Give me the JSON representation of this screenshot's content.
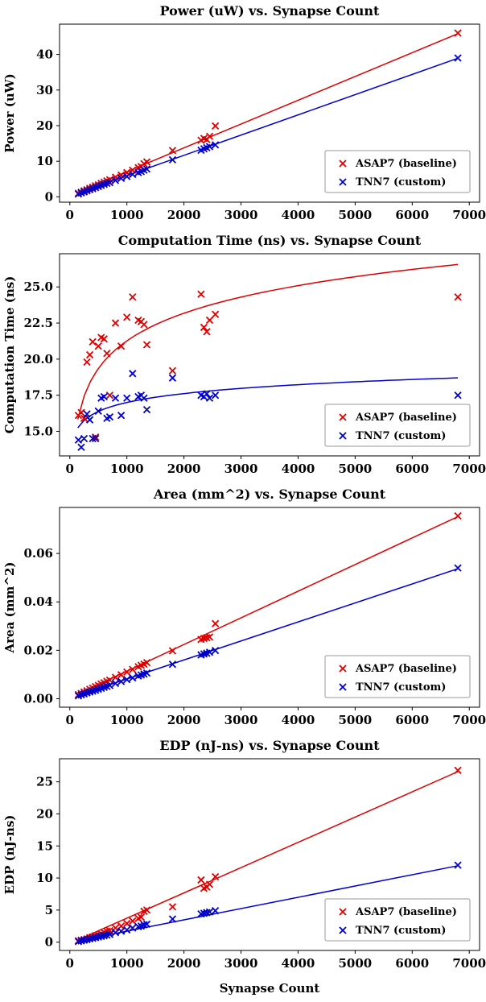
{
  "figure": {
    "xlabel": "Synapse Count",
    "legend": [
      {
        "label": "ASAP7 (baseline)",
        "color": "#dd0000"
      },
      {
        "label": "TNN7 (custom)",
        "color": "#0000cd"
      }
    ]
  },
  "chart_data": [
    {
      "type": "scatter",
      "title": "Power (uW) vs. Synapse Count",
      "ylabel": "Power (uW)",
      "xlabel": "",
      "xlim": [
        -180,
        7180
      ],
      "ylim": [
        -1.5,
        48.5
      ],
      "xticks": [
        [
          0,
          "0"
        ],
        [
          1000,
          "1000"
        ],
        [
          2000,
          "2000"
        ],
        [
          3000,
          "3000"
        ],
        [
          4000,
          "4000"
        ],
        [
          5000,
          "5000"
        ],
        [
          6000,
          "6000"
        ],
        [
          7000,
          "7000"
        ]
      ],
      "yticks": [
        [
          0,
          "0"
        ],
        [
          10,
          "10"
        ],
        [
          20,
          "20"
        ],
        [
          30,
          "30"
        ],
        [
          40,
          "40"
        ]
      ],
      "x": [
        150,
        200,
        250,
        300,
        350,
        400,
        450,
        500,
        550,
        600,
        650,
        700,
        800,
        900,
        1000,
        1100,
        1200,
        1250,
        1300,
        1350,
        1800,
        2300,
        2350,
        2400,
        2450,
        2550,
        6800
      ],
      "series": [
        {
          "name": "ASAP7 (baseline)",
          "color": "#dd0000",
          "marker": "x",
          "values": [
            1.0,
            1.3,
            1.7,
            2.0,
            2.4,
            2.7,
            3.1,
            3.4,
            3.8,
            4.1,
            4.5,
            4.8,
            5.5,
            6.1,
            6.8,
            7.5,
            8.2,
            8.5,
            9.3,
            9.8,
            13.0,
            15.9,
            16.4,
            16.1,
            17.0,
            19.9,
            46.0
          ],
          "trend": {
            "type": "linear",
            "m": 0.00668,
            "b": 0.4,
            "domain": [
              130,
              6800
            ]
          }
        },
        {
          "name": "TNN7 (custom)",
          "color": "#0000cd",
          "marker": "x",
          "values": [
            0.8,
            1.1,
            1.4,
            1.7,
            2.0,
            2.3,
            2.6,
            2.9,
            3.2,
            3.5,
            3.8,
            4.0,
            4.6,
            5.2,
            5.7,
            6.3,
            6.8,
            7.1,
            7.5,
            7.8,
            10.4,
            13.1,
            13.5,
            13.8,
            14.1,
            14.6,
            39.0
          ],
          "trend": {
            "type": "linear",
            "m": 0.00568,
            "b": 0.3,
            "domain": [
              130,
              6800
            ]
          }
        }
      ]
    },
    {
      "type": "scatter",
      "title": "Computation Time (ns) vs. Synapse Count",
      "ylabel": "Computation Time (ns)",
      "xlabel": "",
      "xlim": [
        -180,
        7180
      ],
      "ylim": [
        13.3,
        27.3
      ],
      "xticks": [
        [
          0,
          "0"
        ],
        [
          1000,
          "1000"
        ],
        [
          2000,
          "2000"
        ],
        [
          3000,
          "3000"
        ],
        [
          4000,
          "4000"
        ],
        [
          5000,
          "5000"
        ],
        [
          6000,
          "6000"
        ],
        [
          7000,
          "7000"
        ]
      ],
      "yticks": [
        [
          15.0,
          "15.0"
        ],
        [
          17.5,
          "17.5"
        ],
        [
          20.0,
          "20.0"
        ],
        [
          22.5,
          "22.5"
        ],
        [
          25.0,
          "25.0"
        ]
      ],
      "x": [
        150,
        200,
        250,
        300,
        350,
        400,
        450,
        500,
        550,
        600,
        650,
        700,
        800,
        900,
        1000,
        1100,
        1200,
        1250,
        1300,
        1350,
        1800,
        2300,
        2350,
        2400,
        2450,
        2550,
        6800
      ],
      "series": [
        {
          "name": "ASAP7 (baseline)",
          "color": "#dd0000",
          "marker": "x",
          "values": [
            16.1,
            16.3,
            15.9,
            19.8,
            20.3,
            21.2,
            14.6,
            20.9,
            21.5,
            21.4,
            20.4,
            17.5,
            22.5,
            20.9,
            22.9,
            24.3,
            22.7,
            22.6,
            22.4,
            21.0,
            19.2,
            24.5,
            22.2,
            21.9,
            22.7,
            23.1,
            24.3
          ],
          "trend": {
            "type": "log",
            "a": 2.76,
            "b": 2.2,
            "domain": [
              140,
              6800
            ]
          }
        },
        {
          "name": "TNN7 (custom)",
          "color": "#0000cd",
          "marker": "x",
          "values": [
            14.4,
            13.9,
            14.5,
            16.2,
            15.8,
            14.5,
            14.5,
            16.4,
            17.3,
            17.4,
            15.9,
            16.0,
            17.3,
            16.1,
            17.3,
            19.0,
            17.4,
            17.5,
            17.3,
            16.5,
            18.7,
            17.5,
            17.4,
            17.6,
            17.3,
            17.5,
            17.5
          ],
          "trend": {
            "type": "log",
            "a": 0.89,
            "b": 10.85,
            "domain": [
              140,
              6800
            ]
          }
        }
      ]
    },
    {
      "type": "scatter",
      "title": "Area (mm^2) vs. Synapse Count",
      "ylabel": "Area (mm^2)",
      "xlabel": "",
      "xlim": [
        -180,
        7180
      ],
      "ylim": [
        -0.0035,
        0.079
      ],
      "xticks": [
        [
          0,
          "0"
        ],
        [
          1000,
          "1000"
        ],
        [
          2000,
          "2000"
        ],
        [
          3000,
          "3000"
        ],
        [
          4000,
          "4000"
        ],
        [
          5000,
          "5000"
        ],
        [
          6000,
          "6000"
        ],
        [
          7000,
          "7000"
        ]
      ],
      "yticks": [
        [
          0.0,
          "0.00"
        ],
        [
          0.02,
          "0.02"
        ],
        [
          0.04,
          "0.04"
        ],
        [
          0.06,
          "0.06"
        ]
      ],
      "x": [
        150,
        200,
        250,
        300,
        350,
        400,
        450,
        500,
        550,
        600,
        650,
        700,
        800,
        900,
        1000,
        1100,
        1200,
        1250,
        1300,
        1350,
        1800,
        2300,
        2350,
        2400,
        2450,
        2550,
        6800
      ],
      "series": [
        {
          "name": "ASAP7 (baseline)",
          "color": "#dd0000",
          "marker": "x",
          "values": [
            0.0017,
            0.0022,
            0.0028,
            0.0033,
            0.0039,
            0.0044,
            0.005,
            0.0055,
            0.0061,
            0.0066,
            0.0072,
            0.0077,
            0.0088,
            0.0099,
            0.011,
            0.0121,
            0.0132,
            0.0138,
            0.0143,
            0.0149,
            0.0198,
            0.0245,
            0.0249,
            0.0252,
            0.0255,
            0.031,
            0.0755
          ],
          "trend": {
            "type": "linear",
            "m": 1.1e-05,
            "b": 0.0004,
            "domain": [
              130,
              6800
            ]
          }
        },
        {
          "name": "TNN7 (custom)",
          "color": "#0000cd",
          "marker": "x",
          "values": [
            0.0012,
            0.0016,
            0.002,
            0.0024,
            0.0028,
            0.0031,
            0.0035,
            0.0039,
            0.0043,
            0.0047,
            0.0051,
            0.0055,
            0.0063,
            0.0071,
            0.0079,
            0.0086,
            0.0094,
            0.0098,
            0.0102,
            0.0106,
            0.0142,
            0.0181,
            0.0185,
            0.0188,
            0.0192,
            0.0199,
            0.054
          ],
          "trend": {
            "type": "linear",
            "m": 7.85e-06,
            "b": 0.0003,
            "domain": [
              130,
              6800
            ]
          }
        }
      ]
    },
    {
      "type": "scatter",
      "title": "EDP (nJ-ns) vs. Synapse Count",
      "ylabel": "EDP (nJ-ns)",
      "xlabel": "Synapse Count",
      "xlim": [
        -180,
        7180
      ],
      "ylim": [
        -1.3,
        28.6
      ],
      "xticks": [
        [
          0,
          "0"
        ],
        [
          1000,
          "1000"
        ],
        [
          2000,
          "2000"
        ],
        [
          3000,
          "3000"
        ],
        [
          4000,
          "4000"
        ],
        [
          5000,
          "5000"
        ],
        [
          6000,
          "6000"
        ],
        [
          7000,
          "7000"
        ]
      ],
      "yticks": [
        [
          0,
          "0"
        ],
        [
          5,
          "5"
        ],
        [
          10,
          "10"
        ],
        [
          15,
          "15"
        ],
        [
          20,
          "20"
        ],
        [
          25,
          "25"
        ]
      ],
      "x": [
        150,
        200,
        250,
        300,
        350,
        400,
        450,
        500,
        550,
        600,
        650,
        700,
        800,
        900,
        1000,
        1100,
        1200,
        1250,
        1300,
        1350,
        1800,
        2300,
        2350,
        2400,
        2450,
        2550,
        6800
      ],
      "series": [
        {
          "name": "ASAP7 (baseline)",
          "color": "#dd0000",
          "marker": "x",
          "values": [
            0.2,
            0.3,
            0.4,
            0.5,
            0.7,
            0.8,
            1.0,
            1.1,
            1.3,
            1.5,
            1.7,
            1.8,
            2.2,
            2.5,
            2.9,
            3.3,
            3.7,
            3.9,
            4.8,
            5.0,
            5.5,
            9.7,
            8.4,
            8.6,
            9.0,
            10.2,
            26.8
          ],
          "trend": {
            "type": "linear",
            "m": 0.00394,
            "b": -0.2,
            "domain": [
              130,
              6800
            ]
          }
        },
        {
          "name": "TNN7 (custom)",
          "color": "#0000cd",
          "marker": "x",
          "values": [
            0.1,
            0.2,
            0.3,
            0.4,
            0.5,
            0.6,
            0.7,
            0.8,
            0.9,
            1.0,
            1.1,
            1.2,
            1.5,
            1.7,
            1.9,
            2.2,
            2.4,
            2.5,
            2.7,
            2.8,
            3.6,
            4.4,
            4.5,
            4.6,
            4.7,
            4.9,
            12.0
          ],
          "trend": {
            "type": "linear",
            "m": 0.00176,
            "b": -0.05,
            "domain": [
              130,
              6800
            ]
          }
        }
      ]
    }
  ]
}
